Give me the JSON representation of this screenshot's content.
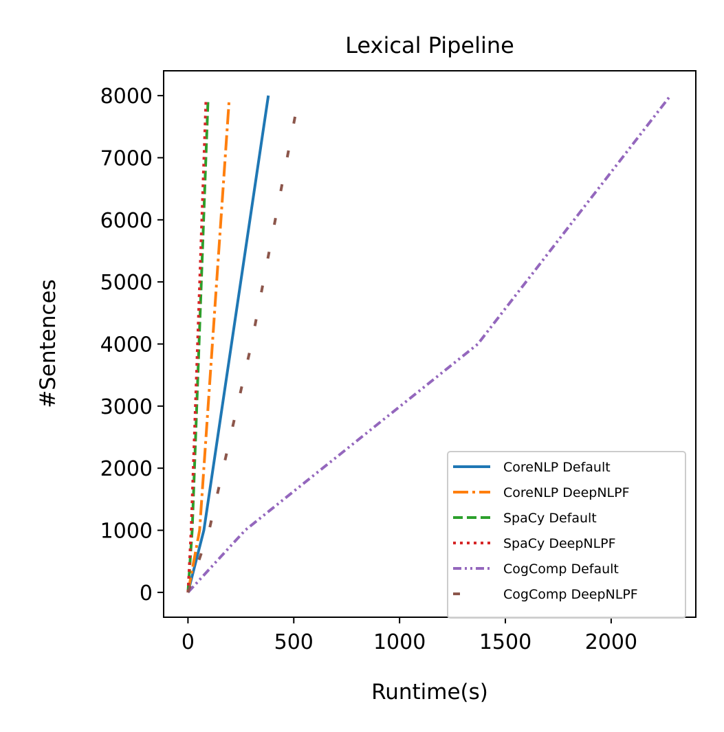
{
  "chart_data": {
    "type": "line",
    "title": "Lexical Pipeline",
    "xlabel": "Runtime(s)",
    "ylabel": "#Sentences",
    "xlim": [
      -115,
      2400
    ],
    "ylim": [
      -400,
      8400
    ],
    "xticks": [
      0,
      500,
      1000,
      1500,
      2000
    ],
    "yticks": [
      0,
      1000,
      2000,
      3000,
      4000,
      5000,
      6000,
      7000,
      8000
    ],
    "grid": false,
    "legend_position": "lower-right",
    "series": [
      {
        "name": "CoreNLP Default",
        "color": "#1f77b4",
        "dash": "solid",
        "x": [
          0,
          75,
          380
        ],
        "y": [
          0,
          1000,
          8000
        ]
      },
      {
        "name": "CoreNLP DeepNLPF",
        "color": "#ff7f0e",
        "dash": "dashdot",
        "x": [
          0,
          55,
          195
        ],
        "y": [
          0,
          1000,
          7950
        ]
      },
      {
        "name": "SpaCy Default",
        "color": "#2ca02c",
        "dash": "dashed",
        "x": [
          0,
          20,
          95
        ],
        "y": [
          0,
          1000,
          7950
        ]
      },
      {
        "name": "SpaCy DeepNLPF",
        "color": "#d62728",
        "dash": "dotted",
        "x": [
          0,
          15,
          85
        ],
        "y": [
          0,
          1000,
          7950
        ]
      },
      {
        "name": "CogComp Default",
        "color": "#9467bd",
        "dash": "dashdotdot",
        "x": [
          0,
          270,
          1370,
          2280
        ],
        "y": [
          0,
          1000,
          4000,
          8000
        ]
      },
      {
        "name": "CogComp DeepNLPF",
        "color": "#8c564b",
        "dash": "loosedash",
        "x": [
          0,
          100,
          300,
          525
        ],
        "y": [
          0,
          1000,
          4000,
          8000
        ]
      }
    ]
  }
}
